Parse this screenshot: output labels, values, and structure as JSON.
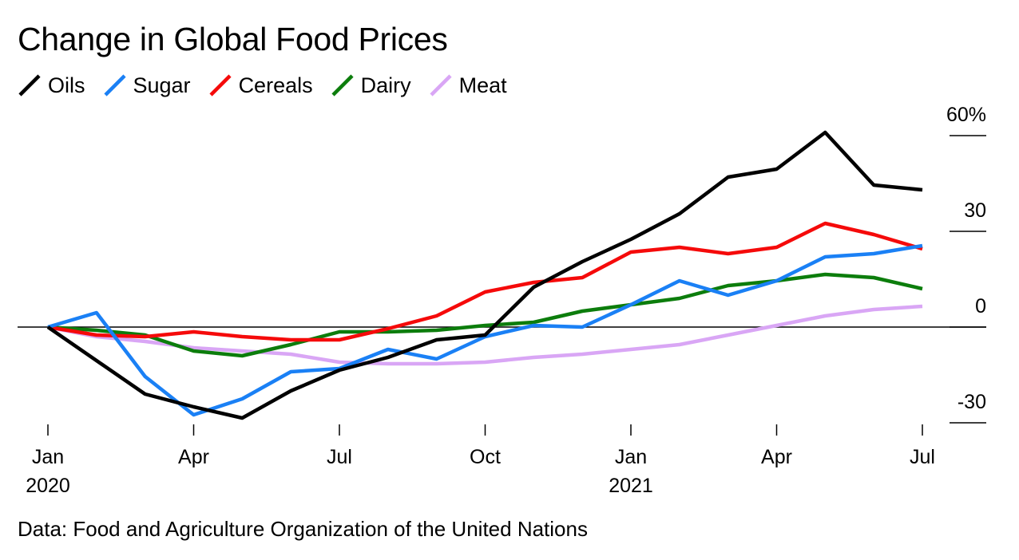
{
  "header": {
    "title": "Change in Global Food Prices"
  },
  "footer": {
    "source": "Data: Food and Agriculture Organization of the United Nations"
  },
  "chart_data": {
    "type": "line",
    "title": "Change in Global Food Prices",
    "xlabel": "",
    "ylabel": "",
    "x": [
      "2020-01",
      "2020-02",
      "2020-03",
      "2020-04",
      "2020-05",
      "2020-06",
      "2020-07",
      "2020-08",
      "2020-09",
      "2020-10",
      "2020-11",
      "2020-12",
      "2021-01",
      "2021-02",
      "2021-03",
      "2021-04",
      "2021-05",
      "2021-06",
      "2021-07"
    ],
    "ylim": [
      -30,
      60
    ],
    "y_ticks": [
      60,
      30,
      0,
      -30
    ],
    "y_tick_labels": [
      "60%",
      "30",
      "0",
      "-30"
    ],
    "x_ticks": [
      {
        "index": 0,
        "label": "Jan",
        "year": "2020"
      },
      {
        "index": 3,
        "label": "Apr",
        "year": ""
      },
      {
        "index": 6,
        "label": "Jul",
        "year": ""
      },
      {
        "index": 9,
        "label": "Oct",
        "year": ""
      },
      {
        "index": 12,
        "label": "Jan",
        "year": "2021"
      },
      {
        "index": 15,
        "label": "Apr",
        "year": ""
      },
      {
        "index": 18,
        "label": "Jul",
        "year": ""
      }
    ],
    "zero_line": true,
    "grid": false,
    "legend_position": "top-left",
    "series": [
      {
        "name": "Oils",
        "color": "#000000",
        "values": [
          0,
          -10.5,
          -21,
          -25,
          -28.5,
          -20,
          -13.5,
          -9.5,
          -4,
          -2.5,
          12.5,
          20.5,
          27.5,
          35.5,
          47,
          49.5,
          61,
          44.5,
          43
        ]
      },
      {
        "name": "Sugar",
        "color": "#1a80f5",
        "values": [
          0,
          4.5,
          -15.5,
          -27.5,
          -22.5,
          -14,
          -13,
          -7,
          -10,
          -3,
          0.5,
          0,
          7,
          14.5,
          10,
          14.5,
          22,
          23,
          25.5
        ]
      },
      {
        "name": "Cereals",
        "color": "#f50a0a",
        "values": [
          0,
          -2.5,
          -3,
          -1.5,
          -3,
          -4,
          -4,
          -0.5,
          3.5,
          11,
          14,
          15.5,
          23.5,
          25,
          23,
          25,
          32.5,
          29,
          24.5
        ]
      },
      {
        "name": "Dairy",
        "color": "#0c7d0c",
        "values": [
          0,
          -1,
          -2.5,
          -7.5,
          -9,
          -5.5,
          -1.5,
          -1.5,
          -1,
          0.5,
          1.5,
          5,
          7,
          9,
          13,
          14.5,
          16.5,
          15.5,
          12
        ]
      },
      {
        "name": "Meat",
        "color": "#d9a6f5",
        "values": [
          0,
          -3,
          -4.5,
          -6.5,
          -7.5,
          -8.5,
          -11,
          -11.5,
          -11.5,
          -11,
          -9.5,
          -8.5,
          -7,
          -5.5,
          -2.5,
          0.5,
          3.5,
          5.5,
          6.5
        ]
      }
    ]
  }
}
